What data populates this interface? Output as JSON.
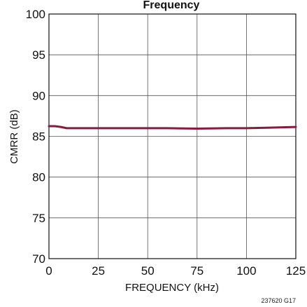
{
  "chart_data": {
    "type": "line",
    "title": "Frequency",
    "xlabel": "FREQUENCY (kHz)",
    "ylabel": "CMRR (dB)",
    "xlim": [
      0,
      125
    ],
    "ylim": [
      70,
      100
    ],
    "x_ticks": [
      0,
      25,
      50,
      75,
      100,
      125
    ],
    "y_ticks": [
      70,
      75,
      80,
      85,
      90,
      95,
      100
    ],
    "grid": true,
    "legend": "none",
    "series": [
      {
        "color": "#8b1a3c",
        "x": [
          0,
          3,
          6,
          9,
          15,
          25,
          40,
          50,
          60,
          75,
          90,
          100,
          110,
          125
        ],
        "y": [
          86.25,
          86.25,
          86.15,
          86.0,
          86.0,
          86.0,
          86.0,
          86.0,
          86.0,
          85.95,
          86.0,
          86.0,
          86.05,
          86.15
        ]
      }
    ],
    "figure_id": "237620 G17"
  },
  "colors": {
    "grid": "#555555",
    "axis": "#111111",
    "background": "#ffffff"
  }
}
